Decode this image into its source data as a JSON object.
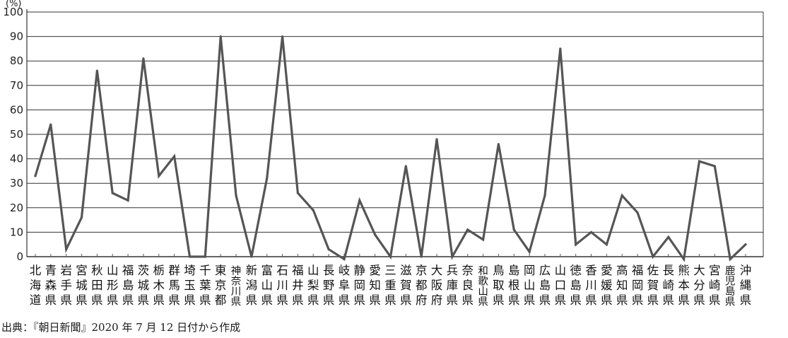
{
  "source_note": "出典：『朝日新聞』2020 年 7 月 12 日付から作成",
  "chart_data": {
    "type": "line",
    "unit_label": "(%)",
    "ylim": [
      0,
      100
    ],
    "yticks": [
      0,
      10,
      20,
      30,
      40,
      50,
      60,
      70,
      80,
      90,
      100
    ],
    "grid": true,
    "line_color": "#555555",
    "categories": [
      "北海道",
      "青森県",
      "岩手県",
      "宮城県",
      "秋田県",
      "山形県",
      "福島県",
      "茨城県",
      "栃木県",
      "群馬県",
      "埼玉県",
      "千葉県",
      "東京都",
      "神奈川県",
      "新潟県",
      "富山県",
      "石川県",
      "福井県",
      "山梨県",
      "長野県",
      "岐阜県",
      "静岡県",
      "愛知県",
      "三重県",
      "滋賀県",
      "京都府",
      "大阪府",
      "兵庫県",
      "奈良県",
      "和歌山県",
      "鳥取県",
      "島根県",
      "岡山県",
      "広島県",
      "山口県",
      "徳島県",
      "香川県",
      "愛媛県",
      "高知県",
      "福岡県",
      "佐賀県",
      "長崎県",
      "熊本県",
      "大分県",
      "宮崎県",
      "鹿児島県",
      "沖縄県"
    ],
    "values": [
      33,
      54,
      3,
      16,
      76,
      26,
      23,
      81,
      33,
      41,
      0,
      0,
      90,
      25,
      0,
      32,
      90,
      26,
      19,
      3,
      -1,
      23,
      9,
      0,
      37,
      0,
      48,
      0,
      11,
      7,
      46,
      11,
      2,
      25,
      85,
      5,
      10,
      5,
      25,
      18,
      0,
      8,
      -1,
      39,
      37,
      -1,
      5
    ]
  }
}
